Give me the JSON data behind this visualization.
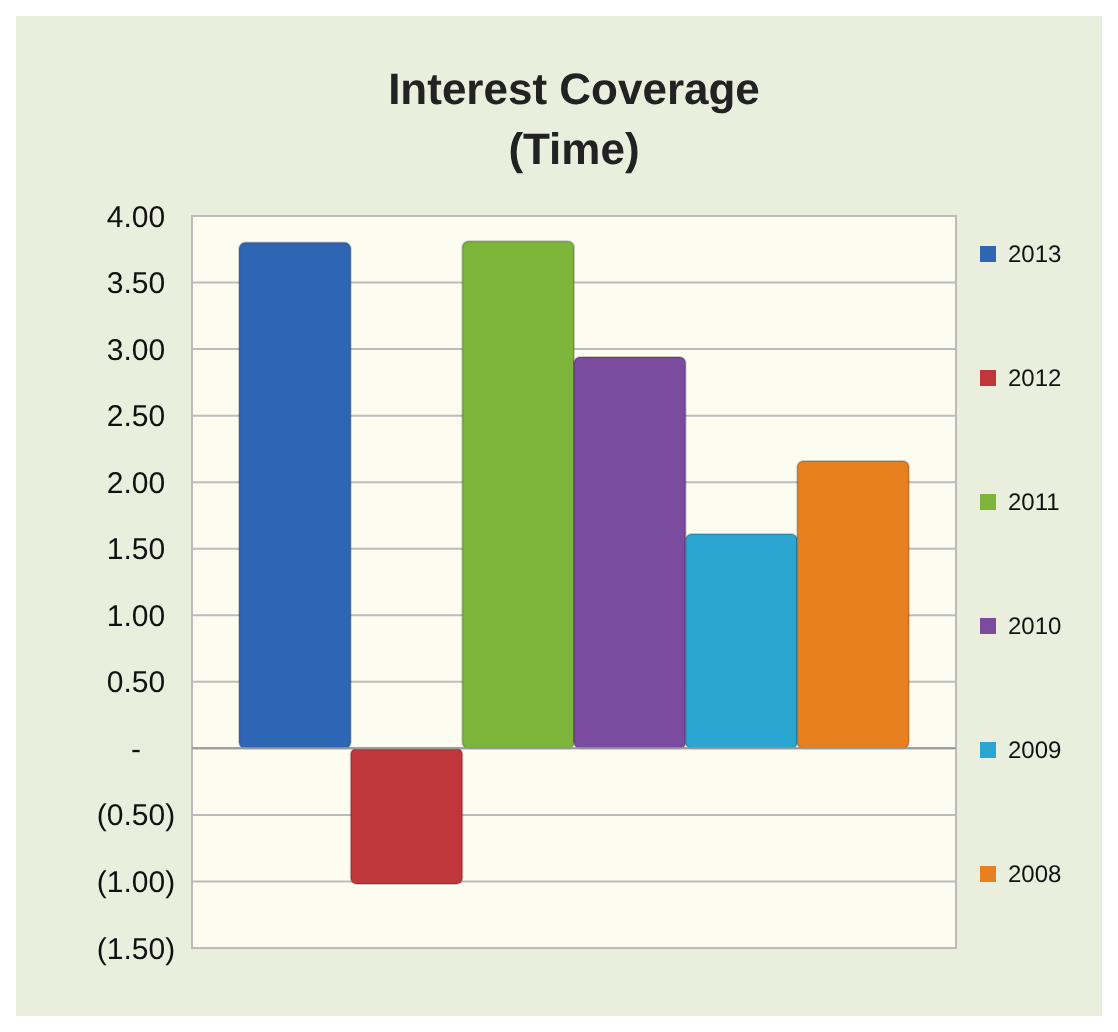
{
  "chart_data": {
    "type": "bar",
    "title": "Interest Coverage\n(Time)",
    "categories": [
      null
    ],
    "series": [
      {
        "name": "2013",
        "color": "#2f66b3",
        "values": [
          3.8
        ]
      },
      {
        "name": "2012",
        "color": "#c1363a",
        "values": [
          -1.02
        ]
      },
      {
        "name": "2011",
        "color": "#7db43a",
        "values": [
          3.81
        ]
      },
      {
        "name": "2010",
        "color": "#7b4b9f",
        "values": [
          2.94
        ]
      },
      {
        "name": "2009",
        "color": "#2ba6d2",
        "values": [
          1.61
        ]
      },
      {
        "name": "2008",
        "color": "#e8801f",
        "values": [
          2.16
        ]
      }
    ],
    "ylim": [
      -1.5,
      4
    ],
    "yticks": [
      {
        "value": 4,
        "label": "4.00"
      },
      {
        "value": 3.5,
        "label": "3.50"
      },
      {
        "value": 3,
        "label": "3.00"
      },
      {
        "value": 2.5,
        "label": "2.50"
      },
      {
        "value": 2,
        "label": "2.00"
      },
      {
        "value": 1.5,
        "label": "1.50"
      },
      {
        "value": 1,
        "label": "1.00"
      },
      {
        "value": 0.5,
        "label": "0.50"
      },
      {
        "value": 0,
        "label": "-"
      },
      {
        "value": -0.5,
        "label": "(0.50)"
      },
      {
        "value": -1,
        "label": "(1.00)"
      },
      {
        "value": -1.5,
        "label": "(1.50)"
      }
    ],
    "grid": "y",
    "legend": "right"
  }
}
